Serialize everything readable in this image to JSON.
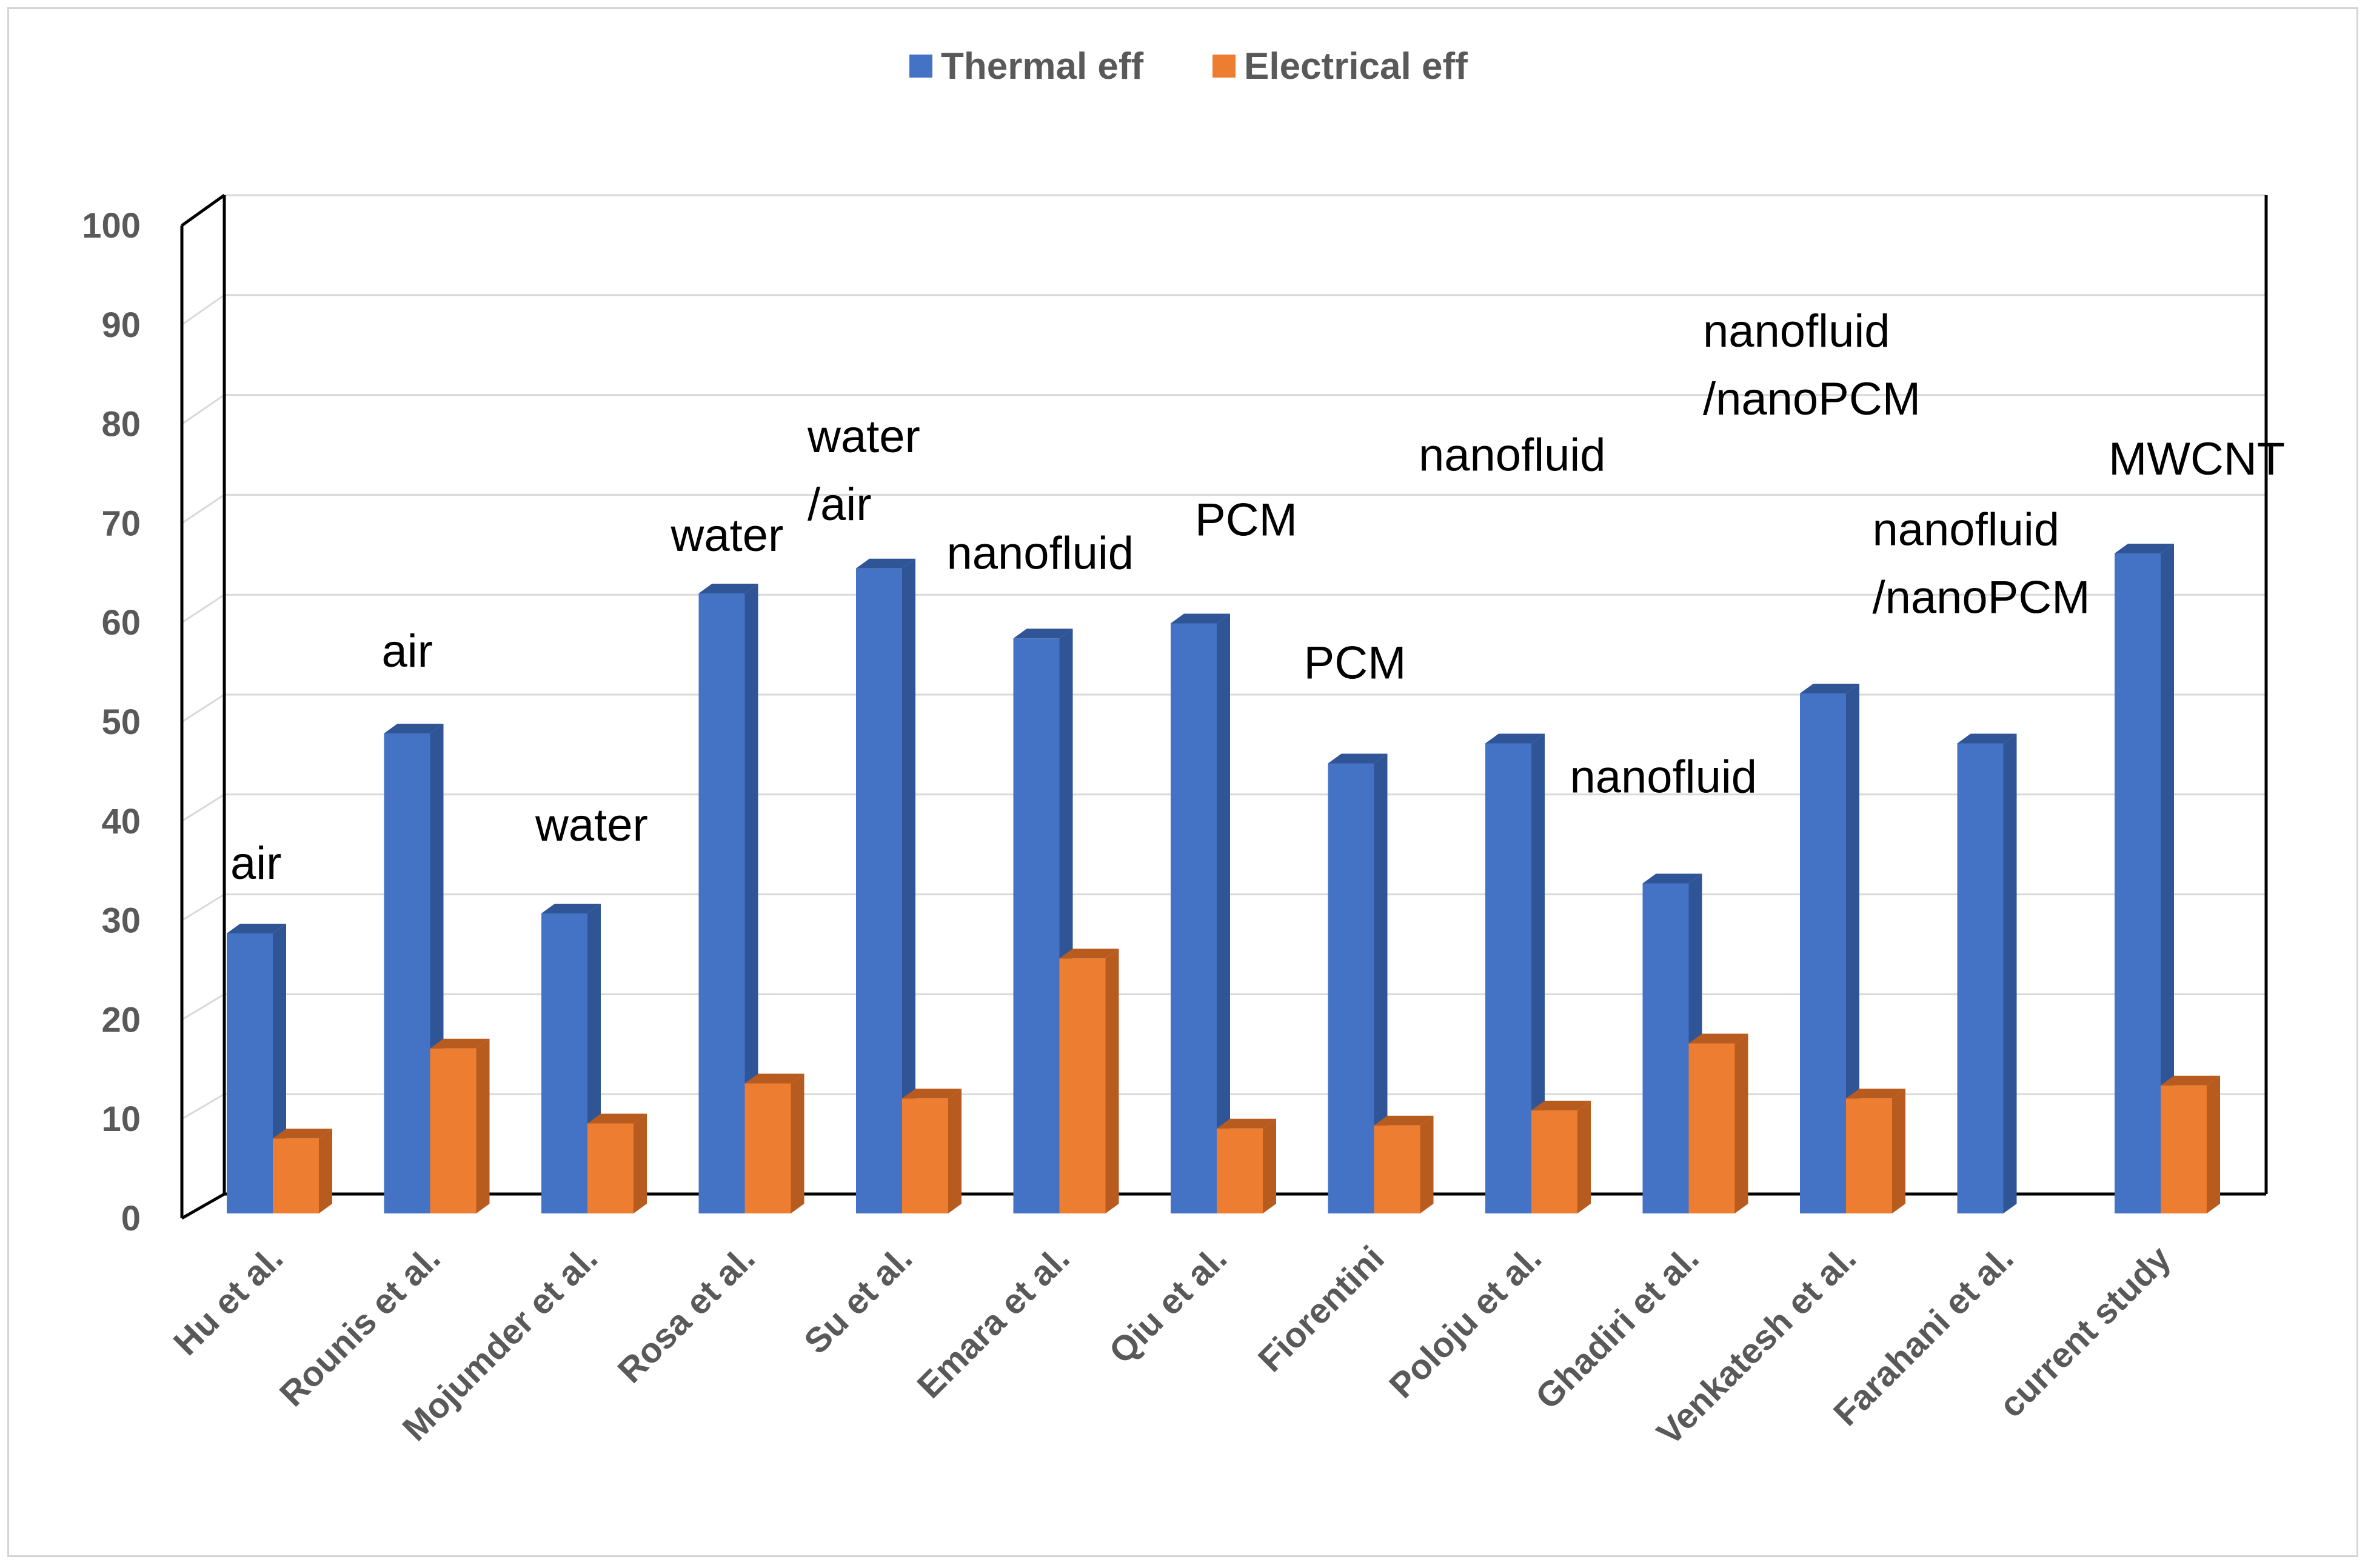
{
  "chart_data": {
    "type": "bar",
    "title": "",
    "xlabel": "",
    "ylabel": "",
    "ylim": [
      0,
      100
    ],
    "yticks": [
      0,
      10,
      20,
      30,
      40,
      50,
      60,
      70,
      80,
      90,
      100
    ],
    "grid": true,
    "legend_position": "top-center",
    "categories": [
      "Hu et al.",
      "Rounis et al.",
      "Mojumder et al.",
      "Rosa et al.",
      "Su et al.",
      "Emara et al.",
      "Qiu et al.",
      "Fiorentini",
      "Poloju et al.",
      "Ghadiri et al.",
      "Venkatesh et al.",
      "Farahani et al.",
      "current study"
    ],
    "series": [
      {
        "name": "Thermal eff",
        "color": "#4472C4",
        "side_color": "#2F5597",
        "values": [
          28,
          48,
          30,
          62,
          64.5,
          57.5,
          59,
          45,
          47,
          33,
          52,
          47,
          66
        ]
      },
      {
        "name": "Electrical eff",
        "color": "#ED7D31",
        "side_color": "#B85B1E",
        "values": [
          7.5,
          16.5,
          9,
          13,
          11.5,
          25.5,
          8.5,
          8.8,
          10.3,
          17,
          11.5,
          null,
          12.8
        ]
      }
    ],
    "annotations": [
      {
        "lines": [
          "air"
        ],
        "category_index": 0
      },
      {
        "lines": [
          "air"
        ],
        "category_index": 1
      },
      {
        "lines": [
          "water"
        ],
        "category_index": 2
      },
      {
        "lines": [
          "water"
        ],
        "category_index": 3
      },
      {
        "lines": [
          "water",
          "/air"
        ],
        "category_index": 4
      },
      {
        "lines": [
          "nanofluid"
        ],
        "category_index": 5
      },
      {
        "lines": [
          "PCM"
        ],
        "category_index": 6
      },
      {
        "lines": [
          "PCM"
        ],
        "category_index": 7
      },
      {
        "lines": [
          "nanofluid"
        ],
        "category_index": 8
      },
      {
        "lines": [
          "nanofluid"
        ],
        "category_index": 9
      },
      {
        "lines": [
          "nanofluid",
          "/nanoPCM"
        ],
        "category_index": 10
      },
      {
        "lines": [
          "nanofluid",
          "/nanoPCM"
        ],
        "category_index": 11
      },
      {
        "lines": [
          "MWCNT"
        ],
        "category_index": 12
      }
    ]
  }
}
